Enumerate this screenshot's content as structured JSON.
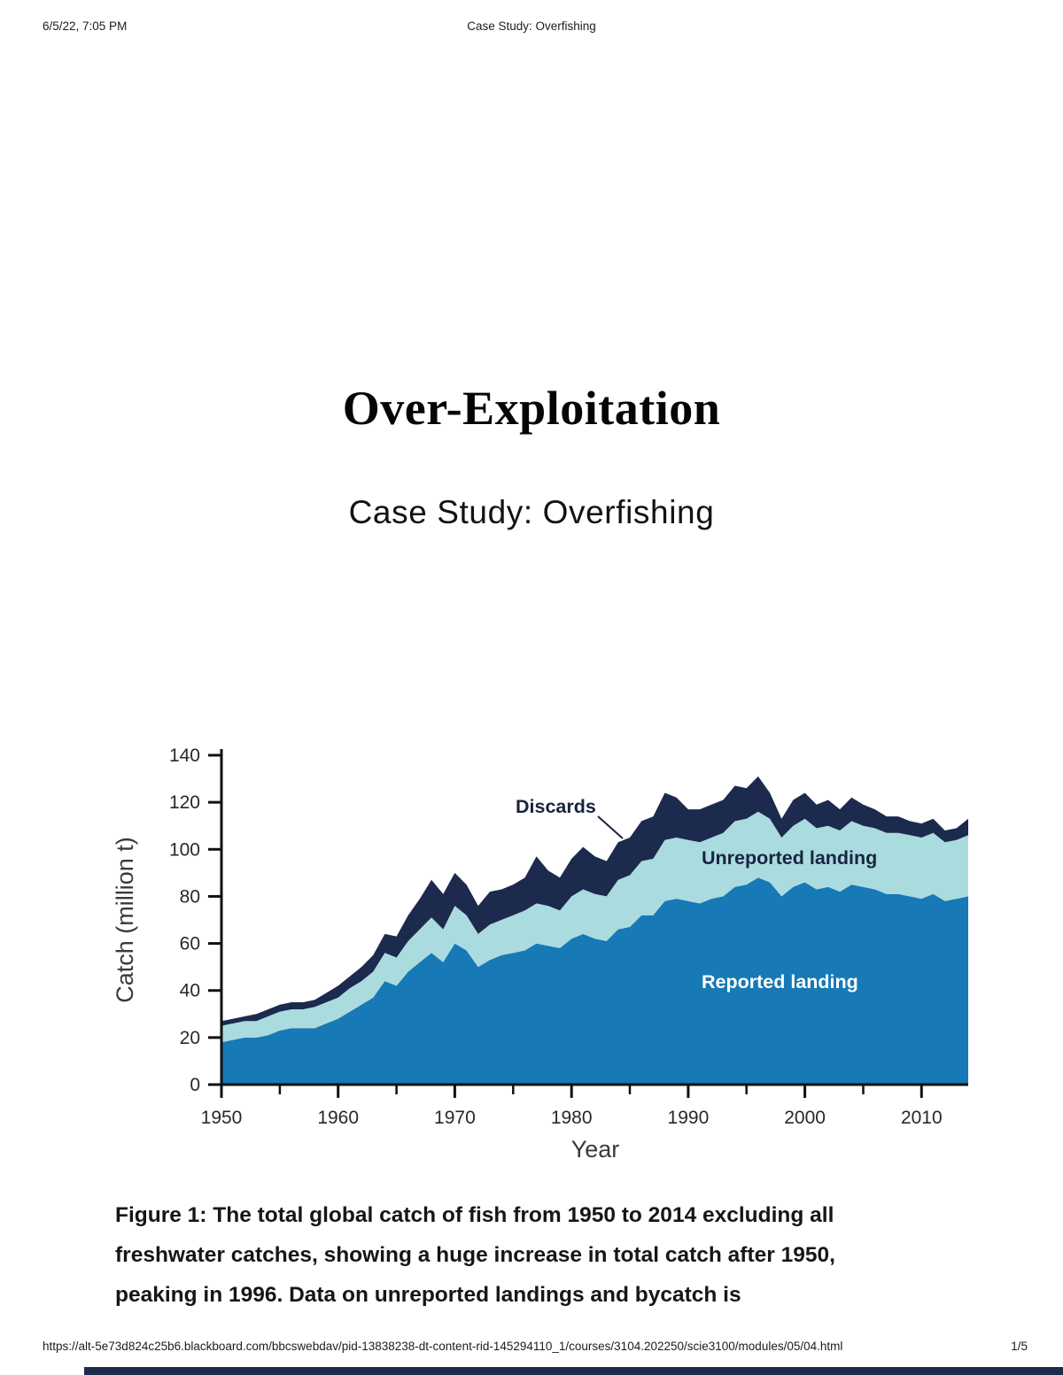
{
  "page": {
    "header": {
      "datetime": "6/5/22, 7:05 PM",
      "doc_title": "Case Study: Overfishing"
    },
    "title": "Over-Exploitation",
    "subtitle": "Case Study: Overfishing",
    "caption": {
      "label": "Figure 1",
      "line1_rest": ": The total global catch of fish from 1950 to 2014 excluding all",
      "line2": "freshwater catches, showing a huge increase in total catch after 1950,",
      "line3": "peaking in 1996. Data on unreported landings and bycatch is"
    },
    "footer": {
      "url": "https://alt-5e73d824c25b6.blackboard.com/bbcswebdav/pid-13838238-dt-content-rid-145294110_1/courses/3104.202250/scie3100/modules/05/04.html",
      "page_indicator": "1/5"
    }
  },
  "chart_data": {
    "type": "area",
    "stacked": true,
    "title": "",
    "xlabel": "Year",
    "ylabel": "Catch (million t)",
    "ylim": [
      0,
      140
    ],
    "yticks": [
      0,
      20,
      40,
      60,
      80,
      100,
      120,
      140
    ],
    "xticks": [
      1950,
      1960,
      1970,
      1980,
      1990,
      2000,
      2010
    ],
    "grid": false,
    "legend_position": "labels-inside-areas",
    "x": [
      1950,
      1951,
      1952,
      1953,
      1954,
      1955,
      1956,
      1957,
      1958,
      1959,
      1960,
      1961,
      1962,
      1963,
      1964,
      1965,
      1966,
      1967,
      1968,
      1969,
      1970,
      1971,
      1972,
      1973,
      1974,
      1975,
      1976,
      1977,
      1978,
      1979,
      1980,
      1981,
      1982,
      1983,
      1984,
      1985,
      1986,
      1987,
      1988,
      1989,
      1990,
      1991,
      1992,
      1993,
      1994,
      1995,
      1996,
      1997,
      1998,
      1999,
      2000,
      2001,
      2002,
      2003,
      2004,
      2005,
      2006,
      2007,
      2008,
      2009,
      2010,
      2011,
      2012,
      2013,
      2014
    ],
    "series": [
      {
        "name": "Reported landing",
        "color": "#1779b5",
        "values": [
          18,
          19,
          20,
          20,
          21,
          23,
          24,
          24,
          24,
          26,
          28,
          31,
          34,
          37,
          44,
          42,
          48,
          52,
          56,
          52,
          60,
          57,
          50,
          53,
          55,
          56,
          57,
          60,
          59,
          58,
          62,
          64,
          62,
          61,
          66,
          67,
          72,
          72,
          78,
          79,
          78,
          77,
          79,
          80,
          84,
          85,
          88,
          86,
          80,
          84,
          86,
          83,
          84,
          82,
          85,
          84,
          83,
          81,
          81,
          80,
          79,
          81,
          78,
          79,
          80
        ]
      },
      {
        "name": "Unreported landing",
        "color": "#aadbdf",
        "values": [
          7,
          7,
          7,
          7,
          8,
          8,
          8,
          8,
          9,
          9,
          9,
          10,
          10,
          11,
          12,
          12,
          13,
          14,
          15,
          14,
          16,
          15,
          14,
          15,
          15,
          16,
          17,
          17,
          17,
          16,
          18,
          19,
          19,
          19,
          21,
          22,
          23,
          24,
          26,
          26,
          26,
          26,
          26,
          27,
          28,
          28,
          28,
          27,
          25,
          26,
          27,
          26,
          26,
          26,
          27,
          26,
          26,
          26,
          26,
          26,
          26,
          26,
          25,
          25,
          26
        ]
      },
      {
        "name": "Discards",
        "color": "#1c2a4e",
        "values": [
          2,
          2,
          2,
          3,
          3,
          3,
          3,
          3,
          3,
          4,
          5,
          5,
          6,
          7,
          8,
          9,
          11,
          13,
          16,
          15,
          14,
          13,
          12,
          14,
          13,
          13,
          14,
          20,
          15,
          14,
          16,
          18,
          16,
          15,
          16,
          16,
          17,
          18,
          20,
          17,
          13,
          14,
          14,
          14,
          15,
          13,
          15,
          11,
          8,
          11,
          11,
          10,
          11,
          9,
          10,
          9,
          8,
          7,
          7,
          6,
          6,
          6,
          5,
          5,
          7
        ]
      }
    ]
  }
}
